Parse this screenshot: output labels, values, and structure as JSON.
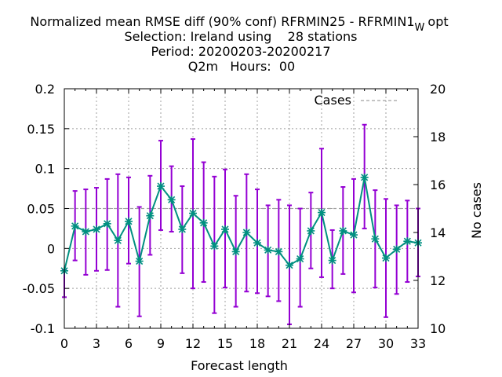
{
  "title": {
    "line1": "Normalized mean RMSE diff (90% conf) RFRMIN25 - RFRMIN1",
    "line1_sub": "W",
    "line1_tail": "opt",
    "line2": "Selection: Ireland using    28 stations",
    "line3": "Period: 20200203-20200217",
    "line4": "Q2m   Hours:  00"
  },
  "chart_data": {
    "type": "line",
    "xlabel": "Forecast length",
    "ylabel": "",
    "y2label": "No cases",
    "xlim": [
      0,
      33
    ],
    "ylim": [
      -0.1,
      0.2
    ],
    "y2lim": [
      10,
      20
    ],
    "grid": true,
    "legend_position": "top-right",
    "x_ticks": [
      "0",
      "3",
      "6",
      "9",
      "12",
      "15",
      "18",
      "21",
      "24",
      "27",
      "30",
      "33"
    ],
    "y_ticks": [
      "0.2",
      "0.15",
      "0.1",
      "0.05",
      "0",
      "-0.05",
      "-0.1"
    ],
    "y2_ticks": [
      "20",
      "18",
      "16",
      "14",
      "12",
      "10"
    ],
    "colors": {
      "series": "#009080",
      "error_bars": "#9400d3",
      "cases": "#a0a0a0"
    },
    "series": [
      {
        "x": [
          0,
          1,
          2,
          3,
          4,
          5,
          6,
          7,
          8,
          9,
          10,
          11,
          12,
          13,
          14,
          15,
          16,
          17,
          18,
          19,
          20,
          21,
          22,
          23,
          24,
          25,
          26,
          27,
          28,
          29,
          30,
          31,
          32,
          33
        ],
        "values": [
          -0.028,
          0.028,
          0.021,
          0.024,
          0.031,
          0.01,
          0.034,
          -0.016,
          0.041,
          0.078,
          0.061,
          0.024,
          0.044,
          0.032,
          0.003,
          0.024,
          -0.004,
          0.02,
          0.007,
          -0.002,
          -0.004,
          -0.021,
          -0.013,
          0.022,
          0.045,
          -0.015,
          0.022,
          0.017,
          0.089,
          0.012,
          -0.012,
          -0.001,
          0.009,
          0.007
        ],
        "lower": [
          -0.061,
          -0.015,
          -0.033,
          -0.028,
          -0.027,
          -0.073,
          -0.019,
          -0.085,
          -0.008,
          0.023,
          0.021,
          -0.031,
          -0.05,
          -0.042,
          -0.081,
          -0.049,
          -0.073,
          -0.054,
          -0.056,
          -0.06,
          -0.066,
          -0.095,
          -0.073,
          -0.025,
          -0.036,
          -0.05,
          -0.032,
          -0.055,
          0.025,
          -0.049,
          -0.086,
          -0.057,
          -0.042,
          -0.035
        ],
        "upper": [
          -0.027,
          0.072,
          0.074,
          0.076,
          0.087,
          0.093,
          0.089,
          0.052,
          0.091,
          0.135,
          0.103,
          0.078,
          0.137,
          0.108,
          0.09,
          0.099,
          0.066,
          0.093,
          0.074,
          0.054,
          0.061,
          0.054,
          0.05,
          0.07,
          0.125,
          0.023,
          0.077,
          0.087,
          0.155,
          0.073,
          0.062,
          0.054,
          0.06,
          0.05
        ]
      },
      {
        "name": "Cases",
        "axis": "y2",
        "x": [
          0,
          33
        ],
        "values": [
          15,
          15
        ]
      }
    ]
  }
}
